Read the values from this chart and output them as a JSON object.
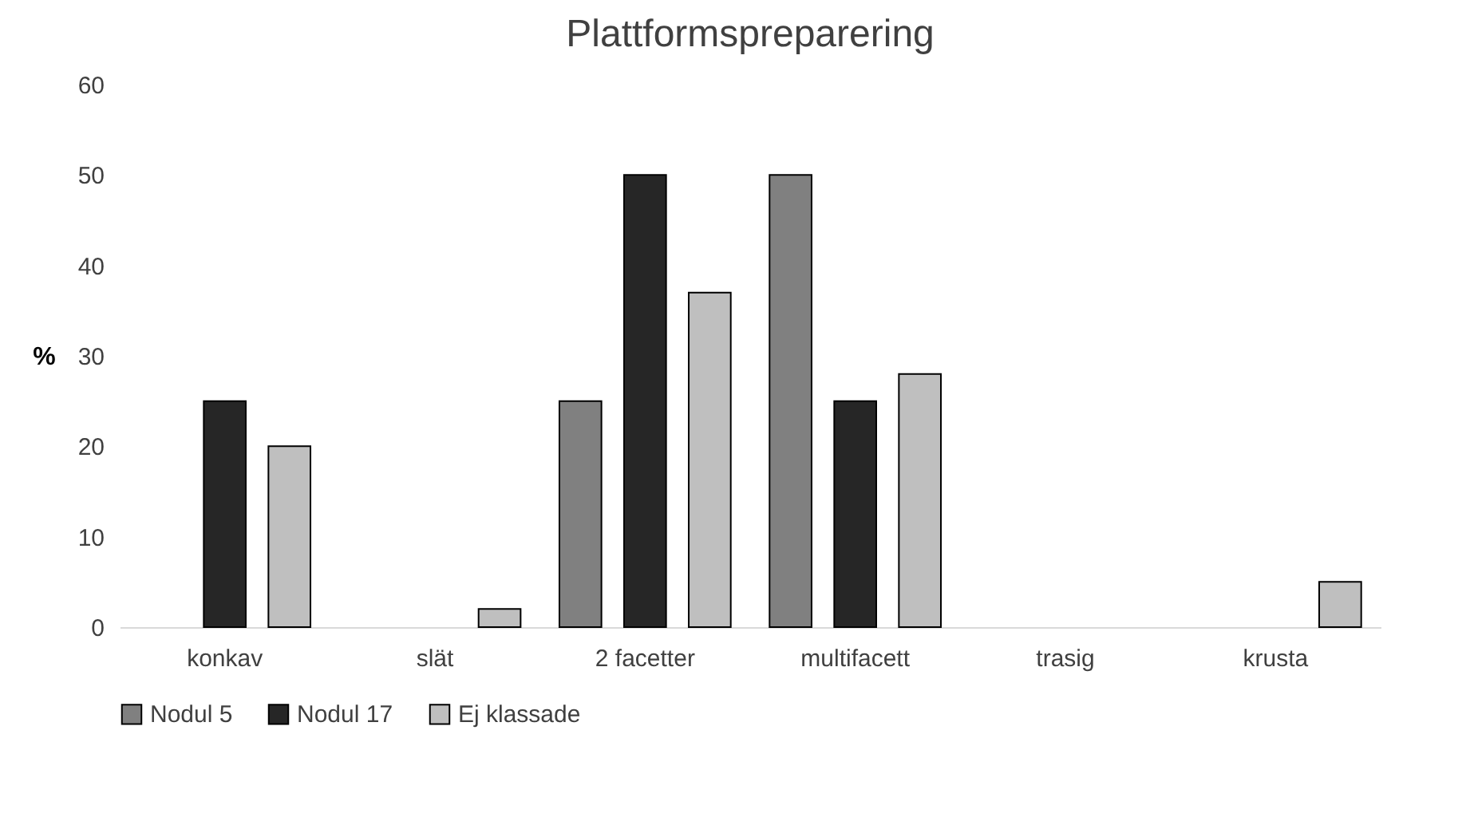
{
  "chart_data": {
    "type": "bar",
    "title": "Plattformspreparering",
    "ylabel": "%",
    "categories": [
      "konkav",
      "slät",
      "2 facetter",
      "multifacett",
      "trasig",
      "krusta"
    ],
    "series": [
      {
        "name": "Nodul 5",
        "color": "#808080",
        "values": [
          0,
          0,
          25,
          50,
          0,
          0
        ]
      },
      {
        "name": "Nodul 17",
        "color": "#262626",
        "values": [
          25,
          0,
          50,
          25,
          0,
          0
        ]
      },
      {
        "name": "Ej klassade",
        "color": "#bfbfbf",
        "values": [
          20,
          2,
          37,
          28,
          0,
          5
        ]
      }
    ],
    "ylim": [
      0,
      60
    ],
    "yticks": [
      0,
      10,
      20,
      30,
      40,
      50,
      60
    ],
    "grid": false,
    "legend": "bottom"
  }
}
